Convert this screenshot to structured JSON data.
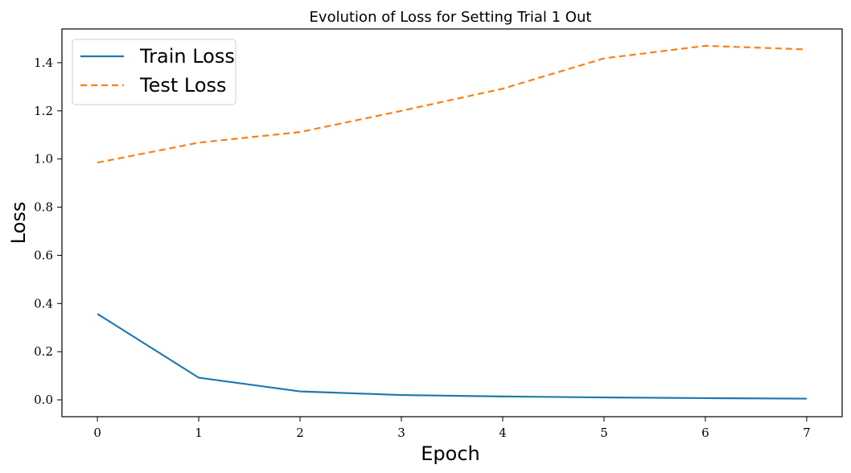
{
  "chart_data": {
    "type": "line",
    "title": "Evolution of Loss for Setting Trial 1 Out",
    "xlabel": "Epoch",
    "ylabel": "Loss",
    "x": [
      0,
      1,
      2,
      3,
      4,
      5,
      6,
      7
    ],
    "xlim": [
      -0.35,
      7.35
    ],
    "ylim": [
      -0.07,
      1.54
    ],
    "xticks": [
      0,
      1,
      2,
      3,
      4,
      5,
      6,
      7
    ],
    "yticks": [
      0.0,
      0.2,
      0.4,
      0.6,
      0.8,
      1.0,
      1.2,
      1.4
    ],
    "ytick_labels": [
      "0.0",
      "0.2",
      "0.4",
      "0.6",
      "0.8",
      "1.0",
      "1.2",
      "1.4"
    ],
    "grid": false,
    "legend_position": "top-left",
    "series": [
      {
        "name": "Train Loss",
        "color": "#1f77b4",
        "dash": "solid",
        "values": [
          0.357,
          0.092,
          0.035,
          0.02,
          0.014,
          0.01,
          0.007,
          0.005
        ]
      },
      {
        "name": "Test Loss",
        "color": "#ff7f0e",
        "dash": "dashed",
        "values": [
          0.985,
          1.068,
          1.112,
          1.2,
          1.292,
          1.418,
          1.47,
          1.455
        ]
      }
    ]
  }
}
